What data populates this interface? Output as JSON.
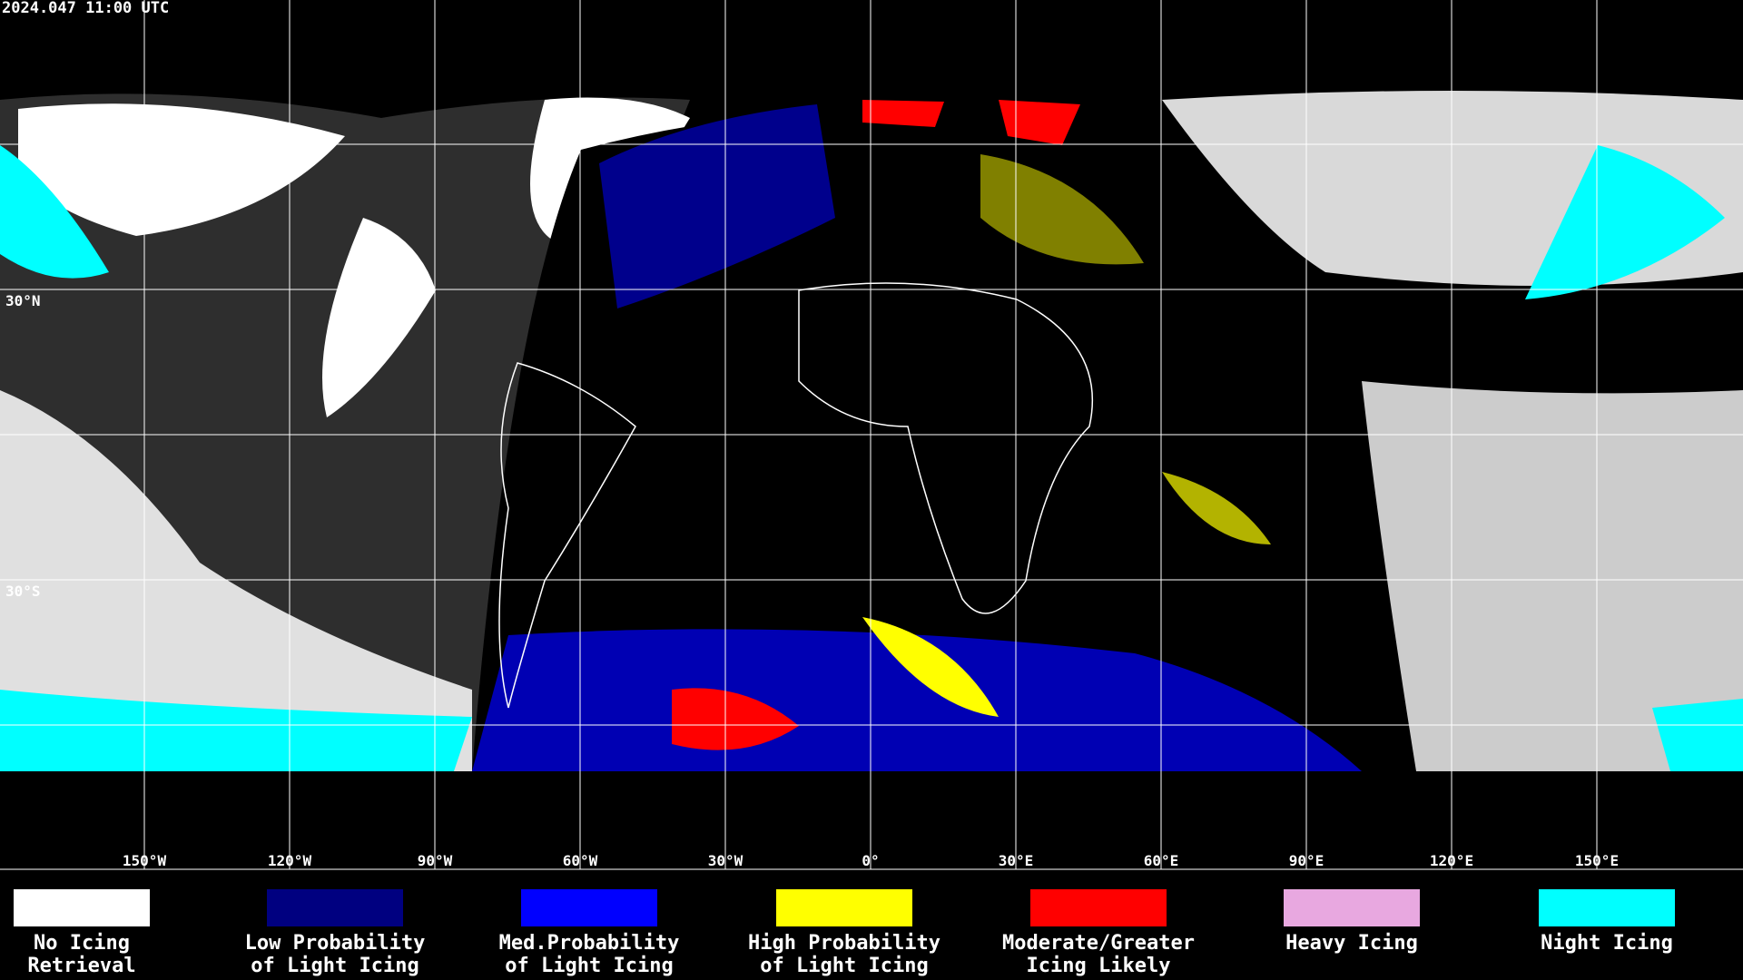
{
  "header": {
    "timestamp": "2024.047 11:00 UTC"
  },
  "map": {
    "lat_labels": [
      "30°N",
      "30°S"
    ],
    "lon_labels": [
      "150°W",
      "120°W",
      "90°W",
      "60°W",
      "30°W",
      "0°",
      "30°E",
      "60°E",
      "90°E",
      "120°E",
      "150°E"
    ]
  },
  "legend": {
    "items": [
      {
        "lines": [
          "No Icing",
          "Retrieval"
        ],
        "color": "#ffffff"
      },
      {
        "lines": [
          "Low Probability",
          "of Light Icing"
        ],
        "color": "#000080"
      },
      {
        "lines": [
          "Med.Probability",
          "of Light Icing"
        ],
        "color": "#0000ff"
      },
      {
        "lines": [
          "High Probability",
          "of Light Icing"
        ],
        "color": "#ffff00"
      },
      {
        "lines": [
          "Moderate/Greater",
          "Icing Likely"
        ],
        "color": "#ff0000"
      },
      {
        "lines": [
          "Heavy Icing"
        ],
        "color": "#e8a8e0"
      },
      {
        "lines": [
          "Night Icing"
        ],
        "color": "#00ffff"
      }
    ]
  }
}
